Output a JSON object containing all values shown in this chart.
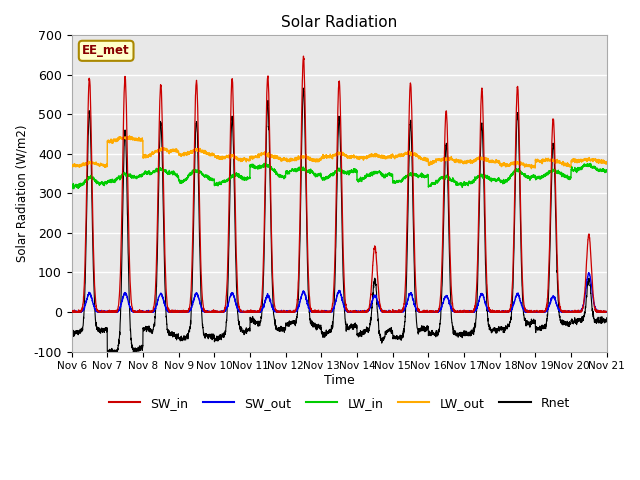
{
  "title": "Solar Radiation",
  "ylabel": "Solar Radiation (W/m2)",
  "xlabel": "Time",
  "ylim": [
    -100,
    700
  ],
  "xlim": [
    0,
    15
  ],
  "background_color": "#e8e8e8",
  "series_colors": {
    "SW_in": "#cc0000",
    "SW_out": "#0000ee",
    "LW_in": "#00cc00",
    "LW_out": "#ffaa00",
    "Rnet": "#000000"
  },
  "annotation_label": "EE_met",
  "annotation_bg": "#ffffcc",
  "annotation_border": "#aa8800",
  "xtick_labels": [
    "Nov 6",
    "Nov 7",
    "Nov 8",
    "Nov 9",
    "Nov 10",
    "Nov 11",
    "Nov 12",
    "Nov 13",
    "Nov 14",
    "Nov 15",
    "Nov 16",
    "Nov 17",
    "Nov 18",
    "Nov 19",
    "Nov 20",
    "Nov 21"
  ],
  "ytick_values": [
    -100,
    0,
    100,
    200,
    300,
    400,
    500,
    600,
    700
  ]
}
